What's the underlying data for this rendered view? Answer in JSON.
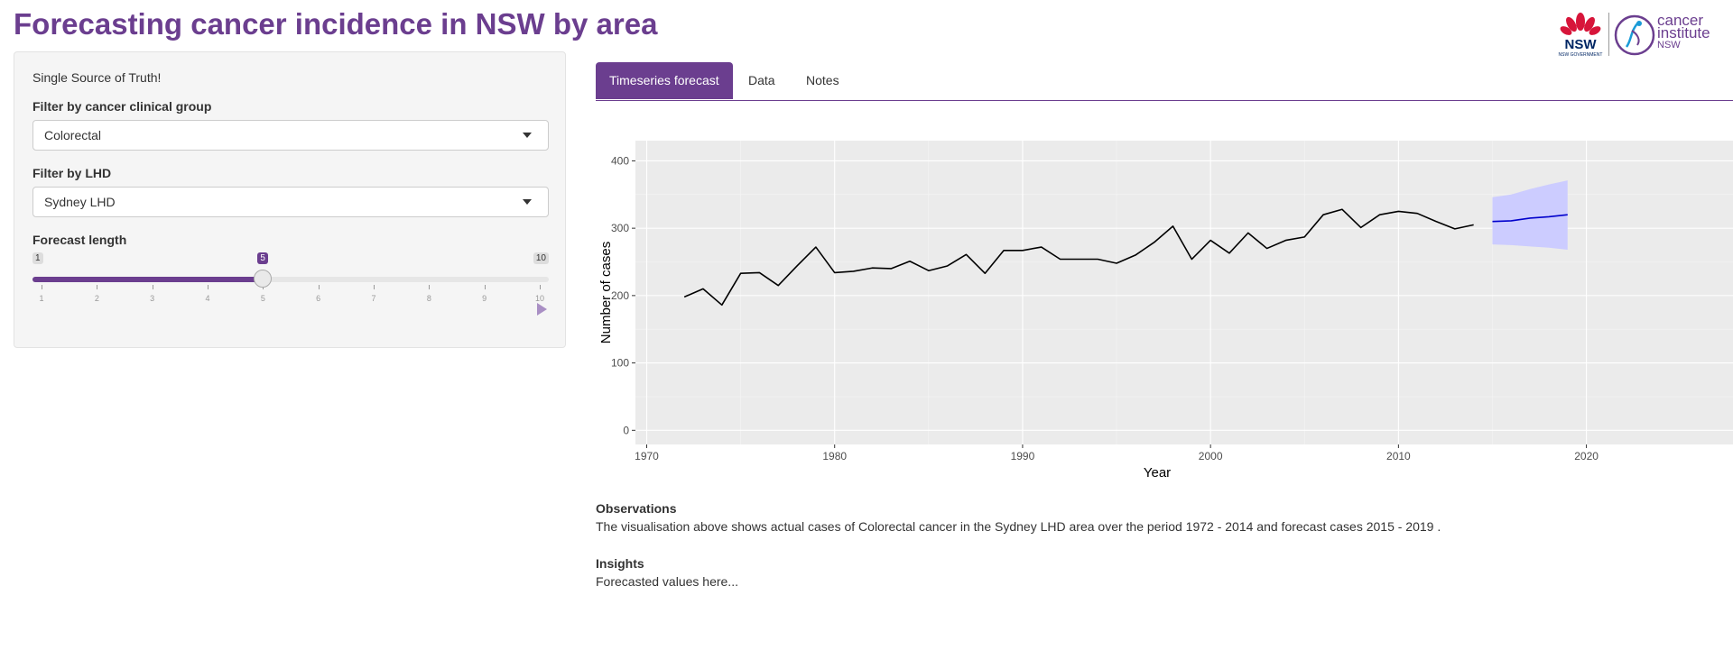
{
  "header": {
    "title": "Forecasting cancer incidence in NSW by area",
    "logo_nsw": "NSW GOVERNMENT",
    "logo_ci": {
      "line1": "cancer",
      "line2": "institute",
      "line3": "NSW"
    }
  },
  "sidebar": {
    "note": "Single Source of Truth!",
    "group_filter": {
      "label": "Filter by cancer clinical group",
      "value": "Colorectal"
    },
    "lhd_filter": {
      "label": "Filter by LHD",
      "value": "Sydney LHD"
    },
    "forecast_length": {
      "label": "Forecast length",
      "min": 1,
      "max": 10,
      "value": 5,
      "ticks": [
        "1",
        "2",
        "3",
        "4",
        "5",
        "6",
        "7",
        "8",
        "9",
        "10"
      ]
    }
  },
  "tabs": [
    {
      "label": "Timeseries forecast",
      "active": true
    },
    {
      "label": "Data",
      "active": false
    },
    {
      "label": "Notes",
      "active": false
    }
  ],
  "chart_data": {
    "type": "line",
    "xlabel": "Year",
    "ylabel": "Number of cases",
    "xlim": [
      1969.4,
      2027.8
    ],
    "ylim": [
      -21,
      430
    ],
    "x_ticks": [
      1970,
      1980,
      1990,
      2000,
      2010,
      2020
    ],
    "y_ticks": [
      0,
      100,
      200,
      300,
      400
    ],
    "grid": true,
    "series": [
      {
        "x": [
          1972,
          1973,
          1974,
          1975,
          1976,
          1977,
          1978,
          1979,
          1980,
          1981,
          1982,
          1983,
          1984,
          1985,
          1986,
          1987,
          1988,
          1989,
          1990,
          1991,
          1992,
          1993,
          1994,
          1995,
          1996,
          1997,
          1998,
          1999,
          2000,
          2001,
          2002,
          2003,
          2004,
          2005,
          2006,
          2007,
          2008,
          2009,
          2010,
          2011,
          2012,
          2013,
          2014
        ],
        "values": [
          198,
          210,
          186,
          233,
          234,
          215,
          244,
          272,
          234,
          236,
          241,
          240,
          251,
          237,
          244,
          261,
          233,
          267,
          267,
          272,
          254,
          254,
          254,
          248,
          260,
          279,
          303,
          254,
          282,
          263,
          293,
          270,
          282,
          287,
          320,
          328,
          301,
          320,
          325,
          322,
          310,
          299,
          305
        ],
        "color": "#000000"
      },
      {
        "x": [
          2015,
          2016,
          2017,
          2018,
          2019
        ],
        "values": [
          310,
          311,
          315,
          317,
          320
        ],
        "color": "#0000cc"
      }
    ],
    "interval": {
      "x": [
        2015,
        2016,
        2017,
        2018,
        2019
      ],
      "lower": [
        276,
        275,
        273,
        271,
        268
      ],
      "upper": [
        346,
        350,
        358,
        365,
        371
      ],
      "color": "#ccccff"
    }
  },
  "observations": {
    "heading": "Observations",
    "text": "The visualisation above shows actual cases of Colorectal cancer in the Sydney LHD area over the period 1972 - 2014 and forecast cases 2015 - 2019 ."
  },
  "insights": {
    "heading": "Insights",
    "text": "Forecasted values here..."
  }
}
